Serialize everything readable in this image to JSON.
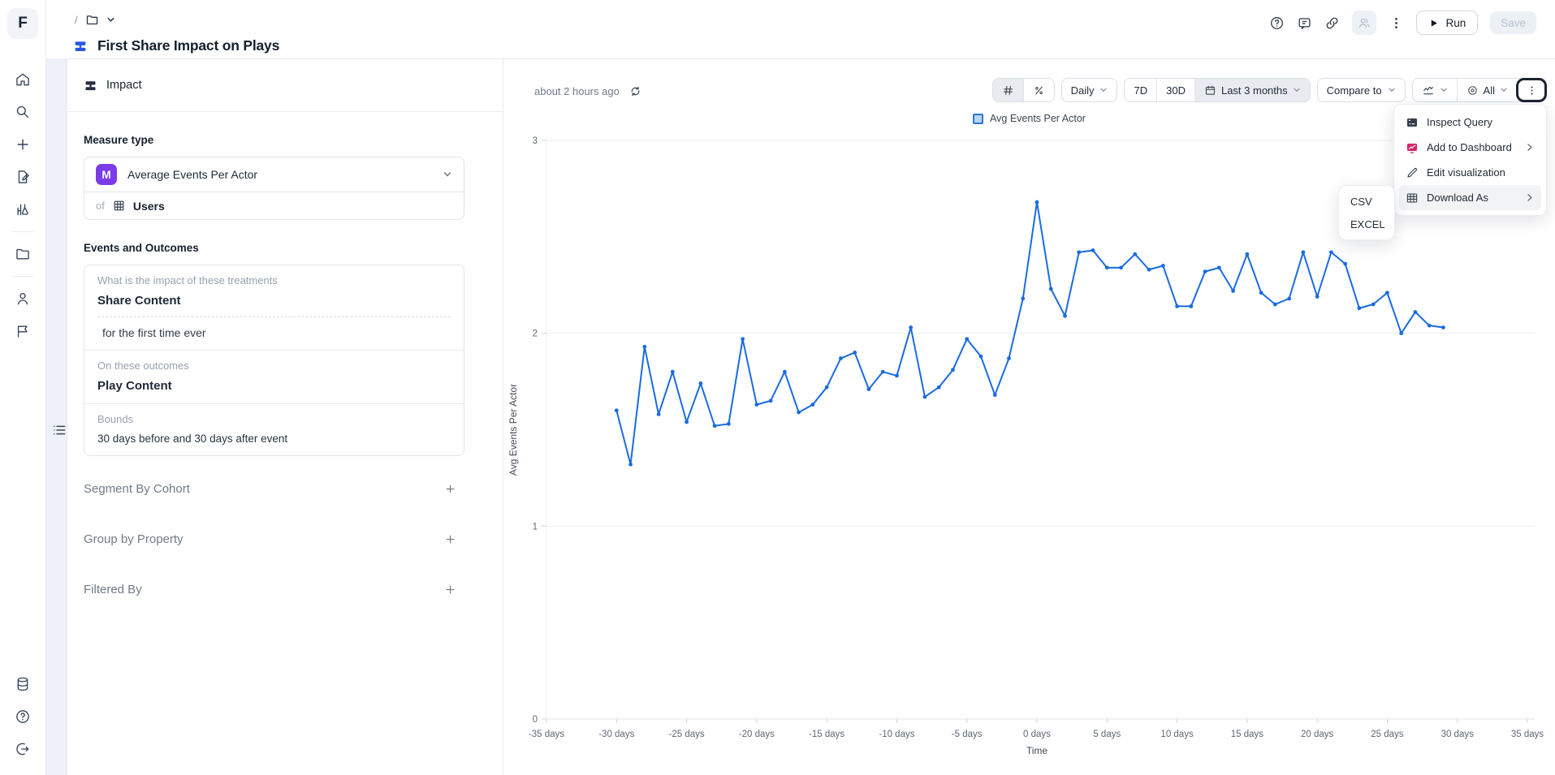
{
  "app": {
    "logo_letter": "F",
    "breadcrumb_separator": "/",
    "title": "First Share Impact on Plays",
    "run_label": "Run",
    "save_label": "Save"
  },
  "sidebar": {
    "icons": [
      "home",
      "search",
      "create-new",
      "drafts",
      "experiments",
      "folder",
      "members",
      "flags",
      "data",
      "help",
      "logout"
    ]
  },
  "panel": {
    "header": "Impact",
    "measure_type_label": "Measure type",
    "measure": {
      "badge": "M",
      "value": "Average Events Per Actor",
      "of_label": "of",
      "entity": "Users"
    },
    "events_outcomes": {
      "section_label": "Events and Outcomes",
      "treatment_label": "What is the impact of these treatments",
      "treatment_value": "Share Content",
      "treatment_qualifier": "for the first time ever",
      "outcome_label": "On these outcomes",
      "outcome_value": "Play Content",
      "bounds_label": "Bounds",
      "bounds_value": "30 days before and 30 days after event"
    },
    "add_sections": [
      {
        "label": "Segment By Cohort"
      },
      {
        "label": "Group by Property"
      },
      {
        "label": "Filtered By"
      }
    ]
  },
  "chart_header": {
    "last_run_relative": "about 2 hours ago"
  },
  "chart_toolbar": {
    "granularity": "Daily",
    "quick_ranges": [
      "7D",
      "30D"
    ],
    "date_range": "Last 3 months",
    "compare_label": "Compare to",
    "series_visibility": "All"
  },
  "menu": {
    "items": [
      {
        "label": "Inspect Query",
        "icon": "query-window"
      },
      {
        "label": "Add to Dashboard",
        "icon": "dashboard-chart",
        "has_submenu": true
      },
      {
        "label": "Edit visualization",
        "icon": "pencil"
      },
      {
        "label": "Download As",
        "icon": "table-grid",
        "has_submenu": true,
        "highlighted": true
      }
    ],
    "download_submenu": [
      {
        "label": "CSV"
      },
      {
        "label": "EXCEL"
      }
    ]
  },
  "colors": {
    "line_blue": "#1a6be0",
    "badge_purple": "#7b3bea",
    "dashboard_pink": "#d6246e"
  },
  "chart_data": {
    "type": "line",
    "xlabel": "Time",
    "ylabel": "Avg Events Per Actor",
    "xlim": [
      -35,
      35
    ],
    "ylim": [
      0,
      3
    ],
    "grid": true,
    "legend_position": "top-center",
    "y_ticks": [
      0,
      1,
      2,
      3
    ],
    "x_ticks": [
      -35,
      -30,
      -25,
      -20,
      -15,
      -10,
      -5,
      0,
      5,
      10,
      15,
      20,
      25,
      30,
      35
    ],
    "x_tick_labels": [
      "-35 days",
      "-30 days",
      "-25 days",
      "-20 days",
      "-15 days",
      "-10 days",
      "-5 days",
      "0 days",
      "5 days",
      "10 days",
      "15 days",
      "20 days",
      "25 days",
      "30 days",
      "35 days"
    ],
    "series": [
      {
        "name": "Avg Events Per Actor",
        "color": "#1a6be0",
        "x": [
          -30,
          -29,
          -28,
          -27,
          -26,
          -25,
          -24,
          -23,
          -22,
          -21,
          -20,
          -19,
          -18,
          -17,
          -16,
          -15,
          -14,
          -13,
          -12,
          -11,
          -10,
          -9,
          -8,
          -7,
          -6,
          -5,
          -4,
          -3,
          -2,
          -1,
          0,
          1,
          2,
          3,
          4,
          5,
          6,
          7,
          8,
          9,
          10,
          11,
          12,
          13,
          14,
          15,
          16,
          17,
          18,
          19,
          20,
          21,
          22,
          23,
          24,
          25,
          26,
          27,
          28,
          29
        ],
        "y": [
          1.6,
          1.32,
          1.93,
          1.58,
          1.8,
          1.54,
          1.74,
          1.52,
          1.53,
          1.97,
          1.63,
          1.65,
          1.8,
          1.59,
          1.63,
          1.72,
          1.87,
          1.9,
          1.71,
          1.8,
          1.78,
          2.03,
          1.67,
          1.72,
          1.81,
          1.97,
          1.88,
          1.68,
          1.87,
          2.18,
          2.68,
          2.23,
          2.09,
          2.42,
          2.43,
          2.34,
          2.34,
          2.41,
          2.33,
          2.35,
          2.14,
          2.14,
          2.32,
          2.34,
          2.22,
          2.41,
          2.21,
          2.15,
          2.18,
          2.42,
          2.19,
          2.42,
          2.36,
          2.13,
          2.15,
          2.21,
          2.0,
          2.11,
          2.04,
          2.03
        ]
      }
    ]
  }
}
